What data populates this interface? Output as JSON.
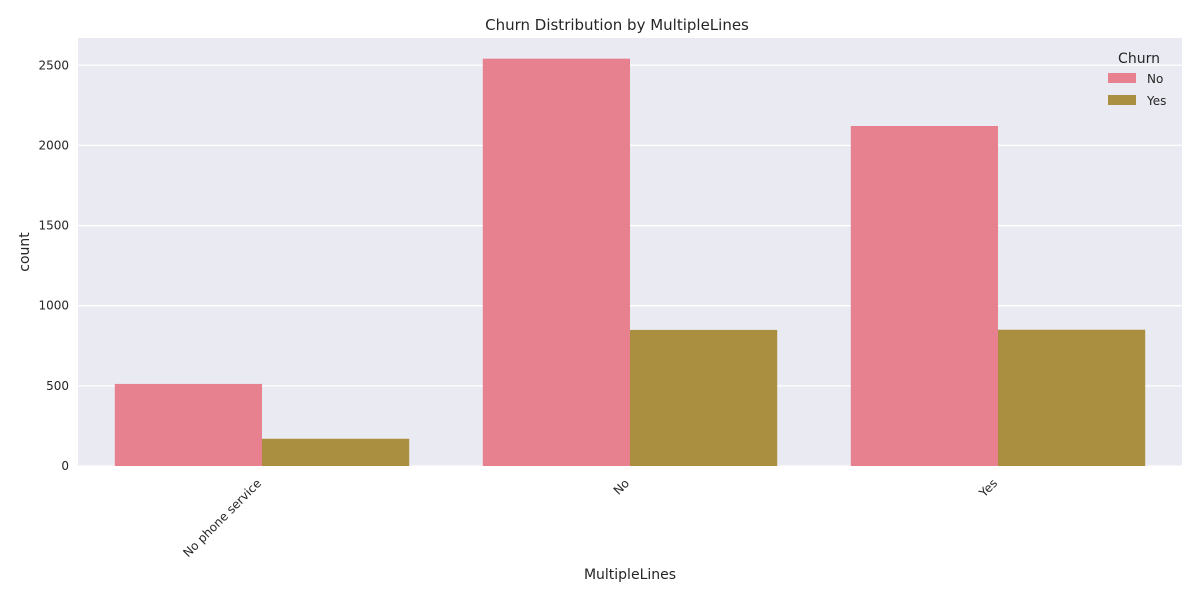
{
  "chart_data": {
    "type": "bar",
    "title": "Churn Distribution by MultipleLines",
    "xlabel": "MultipleLines",
    "ylabel": "count",
    "categories": [
      "No phone service",
      "No",
      "Yes"
    ],
    "series": [
      {
        "name": "No",
        "values": [
          512,
          2541,
          2121
        ],
        "color": "#e7808f"
      },
      {
        "name": "Yes",
        "values": [
          170,
          849,
          850
        ],
        "color": "#aa8f41"
      }
    ],
    "ylim": [
      0,
      2670
    ],
    "yticks": [
      0,
      500,
      1000,
      1500,
      2000,
      2500
    ],
    "grid": true,
    "legend": {
      "title": "Churn",
      "placement": "top-right"
    },
    "background_color": "#eaeaf2"
  }
}
